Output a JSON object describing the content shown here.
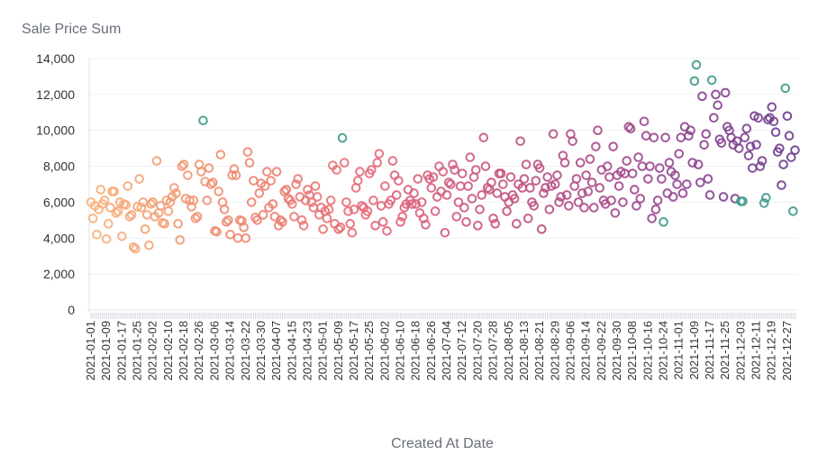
{
  "chart_data": {
    "type": "scatter",
    "title": "",
    "ylabel": "Sale Price Sum",
    "xlabel": "Created At Date",
    "ylim": [
      0,
      14000
    ],
    "yticks": [
      "0",
      "2,000",
      "4,000",
      "6,000",
      "8,000",
      "10,000",
      "12,000",
      "14,000"
    ],
    "ytick_values": [
      0,
      2000,
      4000,
      6000,
      8000,
      10000,
      12000,
      14000
    ],
    "grid": true,
    "start_date": "2021-01-01",
    "xtick_labels": [
      "2021-01-01",
      "2021-01-09",
      "2021-01-17",
      "2021-01-25",
      "2021-02-02",
      "2021-02-10",
      "2021-02-18",
      "2021-02-26",
      "2021-03-06",
      "2021-03-14",
      "2021-03-22",
      "2021-03-30",
      "2021-04-07",
      "2021-04-15",
      "2021-04-23",
      "2021-05-01",
      "2021-05-09",
      "2021-05-17",
      "2021-05-25",
      "2021-06-02",
      "2021-06-10",
      "2021-06-18",
      "2021-06-26",
      "2021-07-04",
      "2021-07-12",
      "2021-07-20",
      "2021-07-28",
      "2021-08-05",
      "2021-08-13",
      "2021-08-21",
      "2021-08-29",
      "2021-09-06",
      "2021-09-14",
      "2021-09-22",
      "2021-09-30",
      "2021-10-08",
      "2021-10-16",
      "2021-10-24",
      "2021-11-01",
      "2021-11-09",
      "2021-11-17",
      "2021-11-25",
      "2021-12-03",
      "2021-12-11",
      "2021-12-19",
      "2021-12-27"
    ],
    "values": [
      6000,
      5100,
      5800,
      4200,
      5600,
      6700,
      5900,
      6100,
      3950,
      4800,
      5700,
      6600,
      6600,
      5400,
      5500,
      6000,
      4100,
      5900,
      5850,
      6900,
      5200,
      5300,
      3500,
      3400,
      5750,
      7300,
      5700,
      6000,
      4500,
      5300,
      3600,
      5900,
      6000,
      5200,
      8300,
      5400,
      5800,
      4850,
      4800,
      6100,
      5500,
      6000,
      6300,
      6800,
      6500,
      4800,
      3900,
      8000,
      8100,
      6200,
      7500,
      6100,
      5750,
      6100,
      5100,
      5200,
      8100,
      7700,
      10550,
      7150,
      6100,
      7900,
      7000,
      7100,
      4400,
      4350,
      6600,
      8650,
      6000,
      5600,
      4900,
      5000,
      4200,
      7500,
      7850,
      7500,
      4000,
      5000,
      4950,
      4600,
      4000,
      8800,
      8200,
      6000,
      7200,
      5150,
      5000,
      6500,
      7050,
      5300,
      6900,
      7700,
      5700,
      7200,
      5900,
      5200,
      7700,
      4700,
      5000,
      4900,
      6600,
      6700,
      6200,
      6100,
      5900,
      5200,
      7000,
      7300,
      6300,
      5000,
      4700,
      6100,
      6700,
      6400,
      6000,
      5700,
      6900,
      6300,
      5300,
      5700,
      4500,
      5500,
      5100,
      5600,
      6100,
      8050,
      4800,
      7800,
      4500,
      4600,
      9580,
      8200,
      6000,
      5500,
      4800,
      4300,
      5600,
      6800,
      7200,
      7700,
      5800,
      5700,
      5300,
      5500,
      7600,
      7800,
      6100,
      4700,
      8200,
      8700,
      5800,
      4900,
      6900,
      4400,
      5900,
      6100,
      8300,
      7500,
      6400,
      7200,
      4900,
      5200,
      5700,
      5900,
      6700,
      6100,
      5900,
      6500,
      5900,
      7300,
      5400,
      6000,
      5100,
      4750,
      7500,
      7300,
      6800,
      7400,
      5500,
      6300,
      8000,
      6600,
      7700,
      4300,
      6400,
      7100,
      7000,
      8100,
      7800,
      5200,
      6000,
      6900,
      7600,
      5700,
      4900,
      6900,
      8500,
      6200,
      7400,
      7800,
      4700,
      5600,
      6400,
      9600,
      8000,
      6800,
      6700,
      7100,
      5100,
      4800,
      6500,
      7600,
      7600,
      7000,
      6300,
      5500,
      6000,
      7400,
      6400,
      6200,
      4800,
      7000,
      9400,
      6800,
      7300,
      8100,
      5100,
      6800,
      6000,
      5800,
      7200,
      8100,
      7900,
      4500,
      6500,
      6800,
      7400,
      5600,
      6900,
      9800,
      7000,
      7500,
      6000,
      6300,
      8600,
      8200,
      6400,
      5800,
      9800,
      9400,
      6900,
      7300,
      6000,
      8200,
      6500,
      5700,
      7500,
      6600,
      8400,
      7100,
      5700,
      9100,
      10000,
      6800,
      7800,
      6100,
      5900,
      8000,
      7400,
      6100,
      9100,
      5400,
      7500,
      6900,
      7700,
      6000,
      7600,
      8300,
      10200,
      10100,
      7600,
      6700,
      5800,
      8500,
      6200,
      8000,
      10500,
      9700,
      7300,
      8000,
      5100,
      9600,
      5600,
      6100,
      7900,
      7300,
      4900,
      9600,
      6500,
      8200,
      7700,
      6300,
      7500,
      7000,
      8700,
      9600,
      6500,
      10200,
      7000,
      9700,
      10000,
      8200,
      12750,
      13650,
      8100,
      7100,
      11900,
      9200,
      9800,
      7300,
      6400,
      12800,
      10700,
      12000,
      11400,
      9500,
      9300,
      6300,
      12100,
      10200,
      10000,
      9600,
      9200,
      6200,
      9400,
      9000,
      6050,
      6050,
      9600,
      10100,
      8600,
      9100,
      7900,
      10800,
      9200,
      10700,
      8000,
      8300,
      5950,
      6250,
      10600,
      10700,
      11300,
      10500,
      9900,
      8800,
      9000,
      6950,
      8100,
      12350,
      10800,
      9700,
      8500,
      5500,
      8900
    ],
    "anomaly_indices": [
      58,
      130,
      296,
      312,
      313,
      321,
      336,
      337,
      348,
      349,
      359,
      363
    ],
    "colors": {
      "gradient": [
        "#f8b27c",
        "#ee8a6e",
        "#e4687a",
        "#c2527f",
        "#9a4690",
        "#6a3d8f"
      ],
      "anomaly": "#3e9a8b",
      "grid": "#eef0f3",
      "axis": "#dfe3ea"
    }
  }
}
